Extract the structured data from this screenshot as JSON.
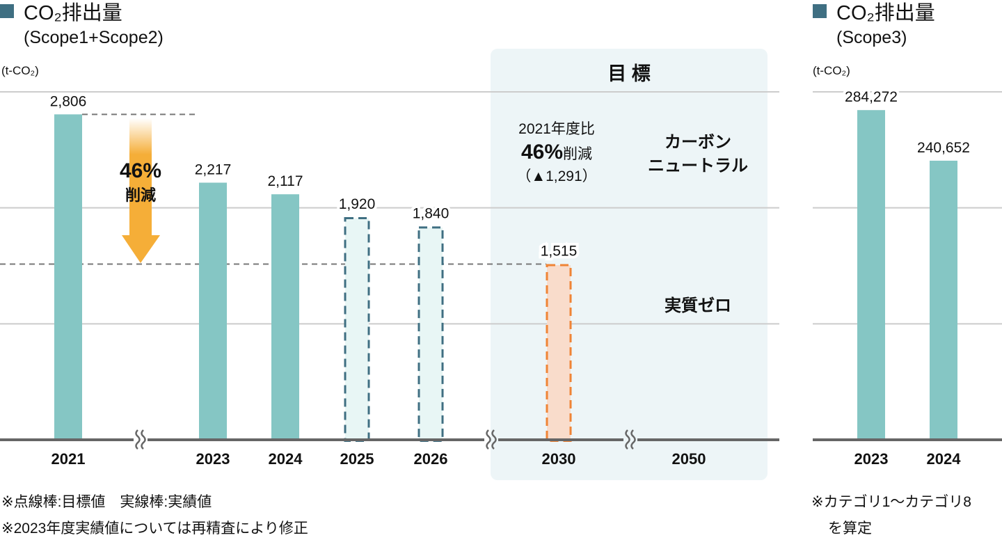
{
  "colors": {
    "actual": "#85c6c4",
    "target_fill": "#e8f6f5",
    "target_stroke": "#3f6f82",
    "goal_fill": "#f9dccb",
    "goal_stroke": "#ef8436",
    "arrow": "#f5ae38",
    "target_box": "#edf5f7",
    "legend_square": "#3f6f82",
    "axis": "#666666",
    "grid": "#cccccc"
  },
  "chart_data": [
    {
      "type": "bar",
      "title": "CO₂排出量",
      "subtitle": "(Scope1+Scope2)",
      "unit": "(t-CO₂)",
      "categories": [
        "2021",
        "2023",
        "2024",
        "2025",
        "2026",
        "2030",
        "2050"
      ],
      "values": [
        2806,
        2217,
        2117,
        1920,
        1840,
        1515,
        null
      ],
      "value_labels": [
        "2,806",
        "2,217",
        "2,117",
        "1,920",
        "1,840",
        "1,515",
        ""
      ],
      "kinds": [
        "actual",
        "actual",
        "actual",
        "target",
        "target",
        "goal",
        "none"
      ],
      "ylim": [
        0,
        3000
      ],
      "grid": [
        1000,
        2000,
        3000
      ],
      "axis_breaks_after": [
        "2021",
        "2026",
        "2030"
      ],
      "reference_line": 1515,
      "annotations": {
        "arrow_pct": "46%",
        "arrow_text": "削減",
        "target_header": "目 標",
        "goal_line1": "2021年度比",
        "goal_pct": "46%",
        "goal_pct_suffix": "削減",
        "goal_diff": "（▲1,291）",
        "cn_line1": "カーボン",
        "cn_line2": "ニュートラル",
        "zero": "実質ゼロ"
      },
      "notes": [
        "※点線棒:目標値　実線棒:実績値",
        "※2023年度実績値については再精査により修正"
      ]
    },
    {
      "type": "bar",
      "title": "CO₂排出量",
      "subtitle": "(Scope3)",
      "unit": "(t-CO₂)",
      "categories": [
        "2023",
        "2024"
      ],
      "values": [
        284272,
        240652
      ],
      "value_labels": [
        "284,272",
        "240,652"
      ],
      "ylim": [
        0,
        300000
      ],
      "grid": [
        100000,
        200000,
        300000
      ],
      "notes": [
        "※カテゴリ1～カテゴリ8",
        "を算定"
      ]
    }
  ]
}
